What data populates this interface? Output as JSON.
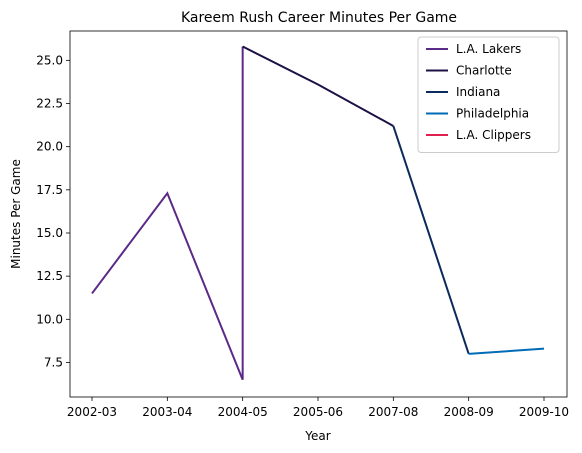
{
  "chart_data": {
    "type": "line",
    "title": "Kareem Rush Career Minutes Per Game",
    "xlabel": "Year",
    "ylabel": "Minutes Per Game",
    "categories": [
      "2002-03",
      "2003-04",
      "2004-05",
      "2005-06",
      "2007-08",
      "2008-09",
      "2009-10"
    ],
    "ylim": [
      5.5,
      26.7
    ],
    "yticks": [
      7.5,
      10.0,
      12.5,
      15.0,
      17.5,
      20.0,
      22.5,
      25.0
    ],
    "ytick_labels": [
      "7.5",
      "10.0",
      "12.5",
      "15.0",
      "17.5",
      "20.0",
      "22.5",
      "25.0"
    ],
    "grid": false,
    "legend_position": "top-right",
    "series": [
      {
        "name": "L.A. Lakers",
        "color": "#5b2a86",
        "points": [
          {
            "x": "2002-03",
            "y": 11.5
          },
          {
            "x": "2003-04",
            "y": 17.3
          },
          {
            "x": "2004-05",
            "y": 6.5
          }
        ]
      },
      {
        "name": "Charlotte",
        "color": "#1d1145",
        "points": [
          {
            "x": "2004-05",
            "y": 25.8
          },
          {
            "x": "2005-06",
            "y": 23.6
          },
          {
            "x": "2007-08",
            "y": 21.2
          }
        ]
      },
      {
        "name": "Indiana",
        "color": "#0b2a5c",
        "points": [
          {
            "x": "2007-08",
            "y": 21.2
          },
          {
            "x": "2008-09",
            "y": 8.0
          }
        ]
      },
      {
        "name": "Philadelphia",
        "color": "#006bb6",
        "points": [
          {
            "x": "2008-09",
            "y": 8.0
          },
          {
            "x": "2009-10",
            "y": 8.3
          }
        ]
      },
      {
        "name": "L.A. Clippers",
        "color": "#e0204f",
        "points": []
      }
    ],
    "connectors": [
      {
        "color": "#5b2a86",
        "points": [
          {
            "x": "2004-05",
            "y": 6.5
          },
          {
            "x": "2004-05",
            "y": 25.8
          }
        ]
      }
    ]
  }
}
